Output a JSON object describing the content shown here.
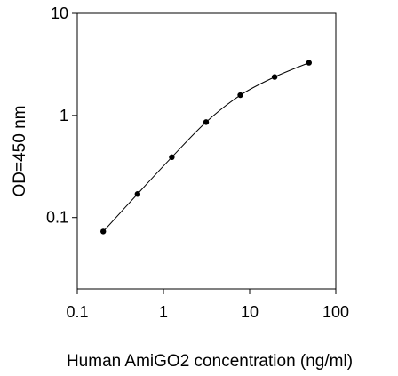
{
  "chart_data": {
    "type": "scatter",
    "title": "",
    "xlabel": "Human AmiGO2 concentration (ng/ml)",
    "ylabel": "OD=450 nm",
    "xscale": "log",
    "yscale": "log",
    "xlim": [
      0.1,
      100
    ],
    "ylim": [
      0.02,
      10
    ],
    "x_ticks": [
      0.1,
      1,
      10,
      100
    ],
    "x_tick_labels": [
      "0.1",
      "1",
      "10",
      "100"
    ],
    "y_ticks": [
      0.1,
      1,
      10
    ],
    "y_tick_labels": [
      "0.1",
      "1",
      "10"
    ],
    "grid": false,
    "legend": "none",
    "series": [
      {
        "x": [
          0.2,
          0.5,
          1.25,
          3.125,
          7.8,
          19.5,
          48.8
        ],
        "y": [
          0.073,
          0.17,
          0.39,
          0.86,
          1.58,
          2.38,
          3.28
        ],
        "line": "smooth",
        "marker": "circle",
        "color": "#000000"
      }
    ]
  }
}
